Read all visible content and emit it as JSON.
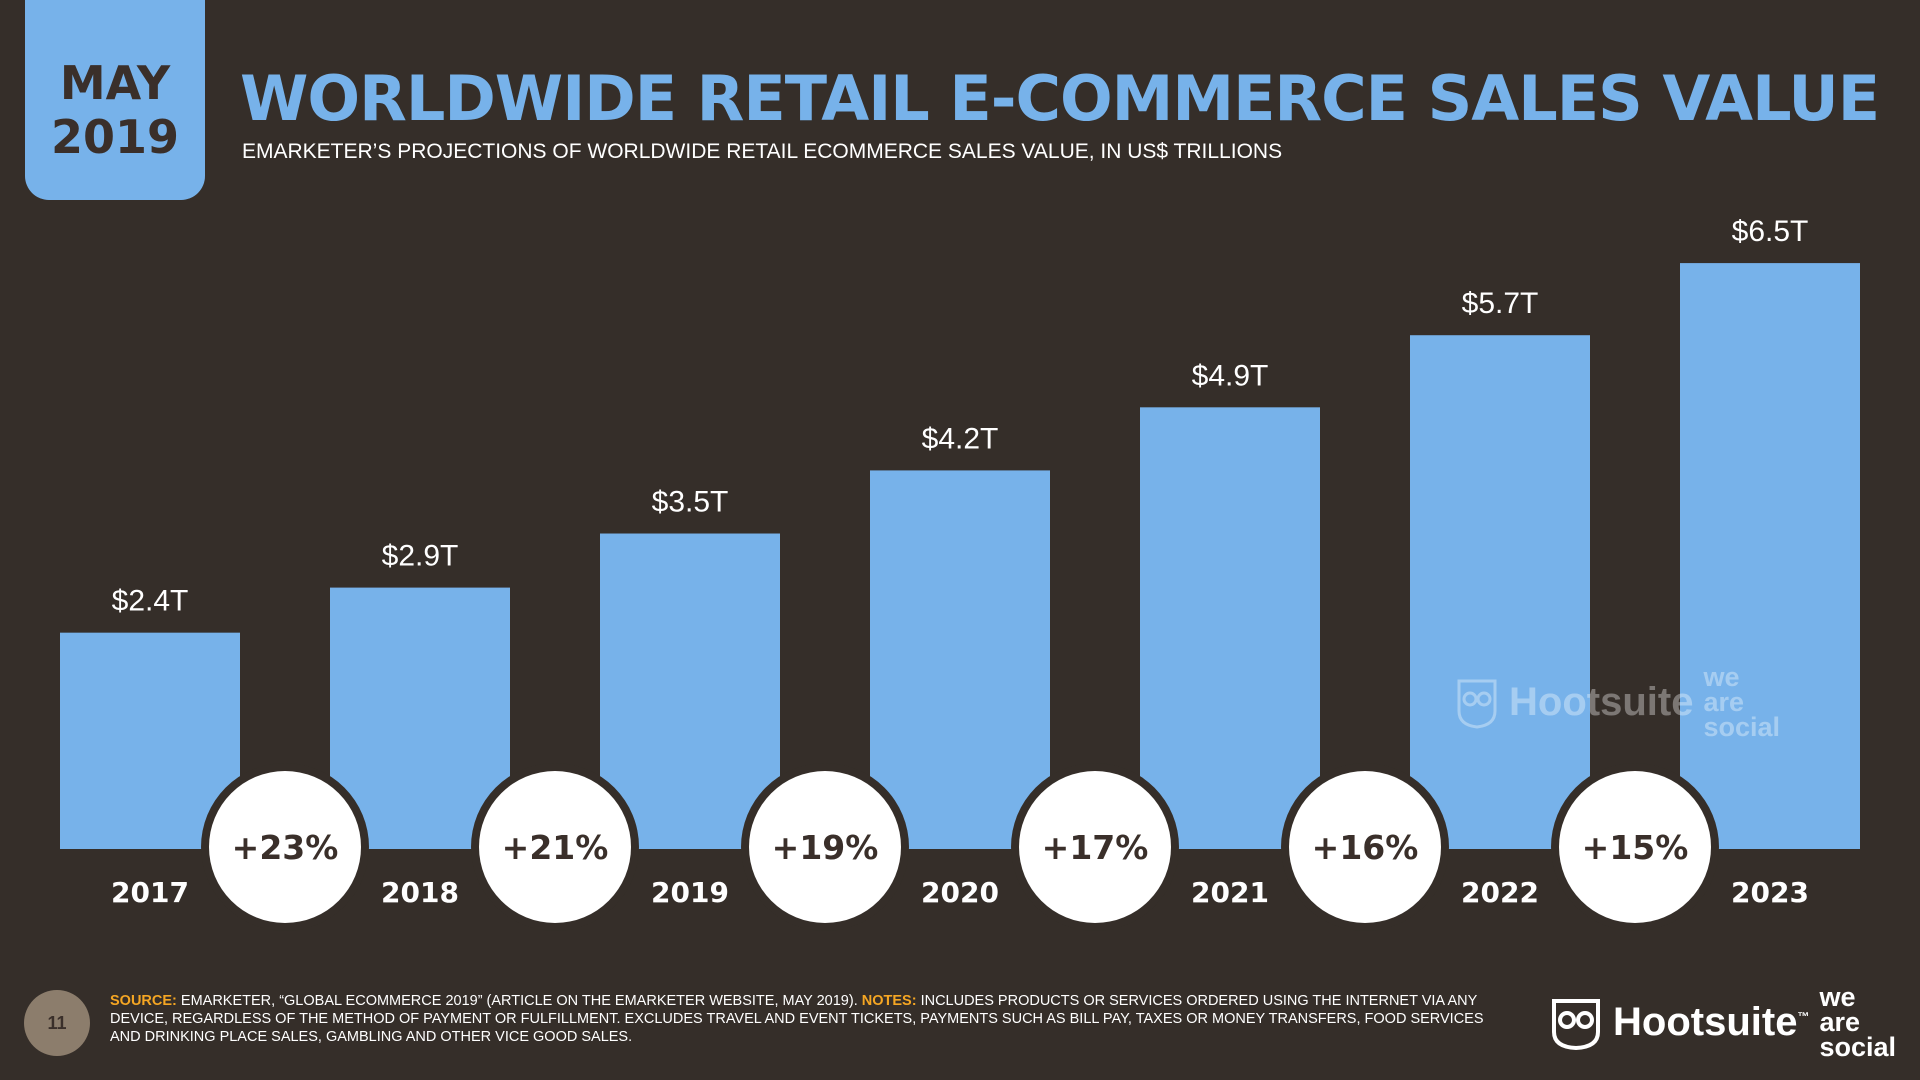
{
  "badge": {
    "month": "MAY",
    "year": "2019"
  },
  "title": "WORLDWIDE RETAIL E-COMMERCE SALES VALUE",
  "subtitle": "EMARKETER’S PROJECTIONS OF WORLDWIDE RETAIL ECOMMERCE SALES VALUE, IN US$ TRILLIONS",
  "colors": {
    "bar": "#77b2ea",
    "background": "#352e29",
    "accent": "#f5a623"
  },
  "chart_data": {
    "type": "bar",
    "categories": [
      "2017",
      "2018",
      "2019",
      "2020",
      "2021",
      "2022",
      "2023"
    ],
    "values": [
      2.4,
      2.9,
      3.5,
      4.2,
      4.9,
      5.7,
      6.5
    ],
    "value_labels": [
      "$2.4T",
      "$2.9T",
      "$3.5T",
      "$4.2T",
      "$4.9T",
      "$5.7T",
      "$6.5T"
    ],
    "growth_labels": [
      "+23%",
      "+21%",
      "+19%",
      "+17%",
      "+16%",
      "+15%"
    ],
    "ylim": [
      0,
      7.2
    ],
    "grid": false
  },
  "footer": {
    "page_number": "11",
    "source_label": "SOURCE:",
    "source_text": "EMARKETER, “GLOBAL ECOMMERCE 2019” (ARTICLE ON THE EMARKETER WEBSITE, MAY 2019).",
    "notes_label": "NOTES:",
    "notes_text": "INCLUDES PRODUCTS OR SERVICES ORDERED USING THE INTERNET VIA ANY DEVICE, REGARDLESS OF THE METHOD OF PAYMENT OR FULFILLMENT. EXCLUDES TRAVEL AND EVENT TICKETS, PAYMENTS SUCH AS BILL PAY, TAXES OR MONEY TRANSFERS, FOOD SERVICES AND DRINKING PLACE SALES, GAMBLING AND OTHER VICE GOOD SALES."
  },
  "brand": {
    "hootsuite": "Hootsuite",
    "tm": "™",
    "we_are_social": [
      "we",
      "are",
      "social"
    ],
    "owl_icon": "owl-icon"
  }
}
